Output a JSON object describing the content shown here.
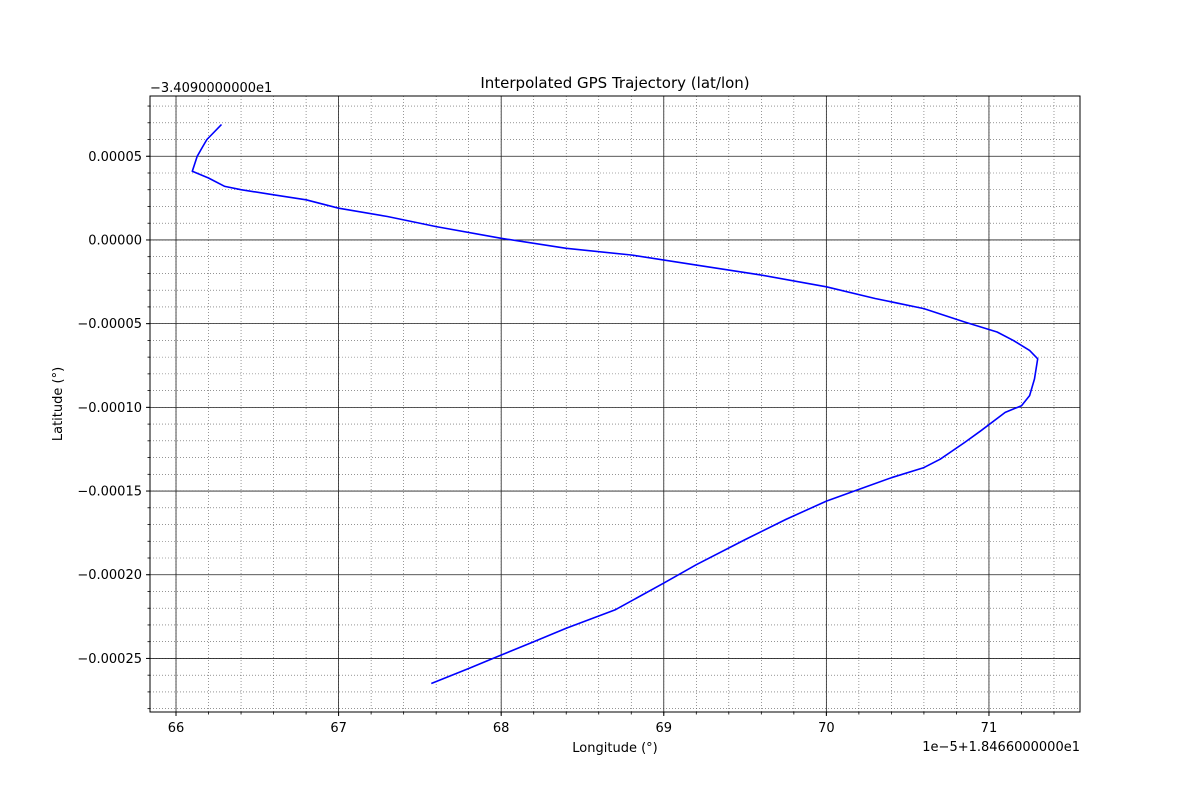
{
  "chart_data": {
    "type": "line",
    "title": "Interpolated GPS Trajectory (lat/lon)",
    "xlabel": "Longitude (°)",
    "ylabel": "Latitude (°)",
    "x_offset_label": "1e−5+1.8466000000e1",
    "y_offset_label": "−3.4090000000e1",
    "x_ticks": [
      66,
      67,
      68,
      69,
      70,
      71
    ],
    "x_tick_labels": [
      "66",
      "67",
      "68",
      "69",
      "70",
      "71"
    ],
    "y_ticks": [
      5e-05,
      0.0,
      -5e-05,
      -0.0001,
      -0.00015,
      -0.0002,
      -0.00025
    ],
    "y_tick_labels": [
      "0.00005",
      "0.00000",
      "−0.00005",
      "−0.00010",
      "−0.00015",
      "−0.00020",
      "−0.00025"
    ],
    "xlim": [
      65.84,
      71.56
    ],
    "ylim": [
      -0.000282,
      8.6e-05
    ],
    "grid": "major solid, minor dotted",
    "line_color": "#0000ff",
    "series": [
      {
        "x": [
          66.28,
          66.22,
          66.19,
          66.16,
          66.13,
          66.1,
          66.2,
          66.3,
          66.4,
          66.6,
          66.8,
          67.0,
          67.3,
          67.6,
          68.0,
          68.4,
          68.8,
          69.2,
          69.6,
          70.0,
          70.3,
          70.6,
          70.85,
          71.05,
          71.15,
          71.25,
          71.3,
          71.28,
          71.25,
          71.2,
          71.1,
          70.95,
          70.85,
          70.7,
          70.6,
          70.4,
          70.2,
          70.0,
          69.75,
          69.5,
          69.2,
          69.0,
          68.7,
          68.4,
          68.2,
          67.95,
          67.8,
          67.57
        ],
        "y": [
          6.9e-05,
          6.3e-05,
          6e-05,
          5.5e-05,
          5e-05,
          4.1e-05,
          3.7e-05,
          3.2e-05,
          3e-05,
          2.7e-05,
          2.4e-05,
          1.9e-05,
          1.4e-05,
          8e-06,
          1e-06,
          -5e-06,
          -9e-06,
          -1.5e-05,
          -2.1e-05,
          -2.8e-05,
          -3.5e-05,
          -4.1e-05,
          -4.9e-05,
          -5.5e-05,
          -6e-05,
          -6.6e-05,
          -7.1e-05,
          -8.3e-05,
          -9.3e-05,
          -9.9e-05,
          -0.000103,
          -0.000114,
          -0.000121,
          -0.000131,
          -0.000136,
          -0.000142,
          -0.000149,
          -0.000156,
          -0.000167,
          -0.000179,
          -0.000194,
          -0.000205,
          -0.000221,
          -0.000232,
          -0.00024,
          -0.00025,
          -0.000256,
          -0.000265
        ]
      }
    ]
  }
}
